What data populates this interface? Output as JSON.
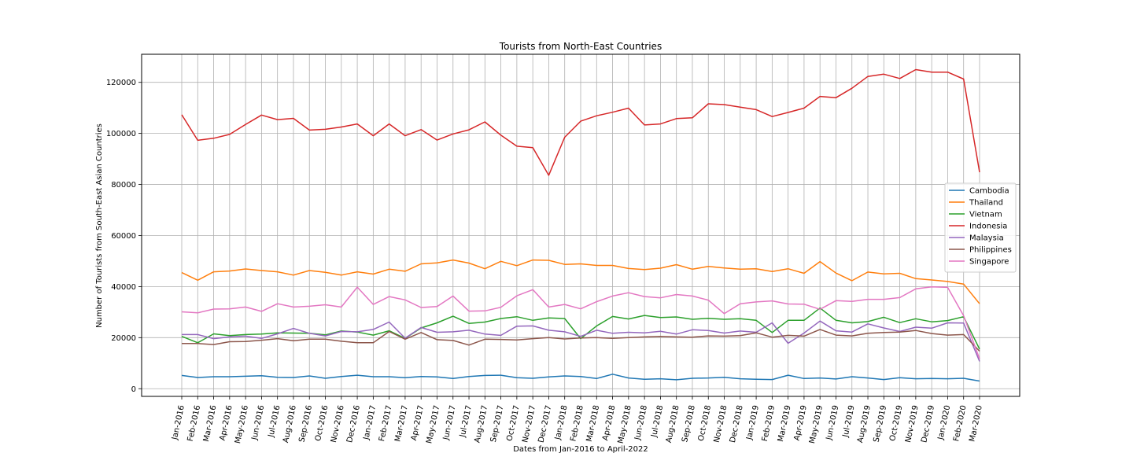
{
  "chart_data": {
    "type": "line",
    "title": "Tourists from North-East Countries",
    "xlabel": "Dates from Jan-2016 to April-2022",
    "ylabel": "Number of Tourists from South-East Asian Countries",
    "ylim": [
      -3000,
      131000
    ],
    "yticks": [
      0,
      20000,
      40000,
      60000,
      80000,
      100000,
      120000
    ],
    "grid": true,
    "legend_position": "right",
    "categories": [
      "Jan-2016",
      "Feb-2016",
      "Mar-2016",
      "Apr-2016",
      "May-2016",
      "Jun-2016",
      "Jul-2016",
      "Aug-2016",
      "Sep-2016",
      "Oct-2016",
      "Nov-2016",
      "Dec-2016",
      "Jan-2017",
      "Feb-2017",
      "Mar-2017",
      "Apr-2017",
      "May-2017",
      "Jun-2017",
      "Jul-2017",
      "Aug-2017",
      "Sep-2017",
      "Oct-2017",
      "Nov-2017",
      "Dec-2017",
      "Jan-2018",
      "Feb-2018",
      "Mar-2018",
      "Apr-2018",
      "May-2018",
      "Jun-2018",
      "Jul-2018",
      "Aug-2018",
      "Sep-2018",
      "Oct-2018",
      "Nov-2018",
      "Dec-2018",
      "Jan-2019",
      "Feb-2019",
      "Mar-2019",
      "Apr-2019",
      "May-2019",
      "Jun-2019",
      "Jul-2019",
      "Aug-2019",
      "Sep-2019",
      "Oct-2019",
      "Nov-2019",
      "Dec-2019",
      "Jan-2020",
      "Feb-2020",
      "Mar-2020"
    ],
    "series": [
      {
        "name": "Cambodia",
        "color": "#1f77b4",
        "values": [
          5200,
          4400,
          4700,
          4700,
          4900,
          5100,
          4500,
          4400,
          5000,
          4100,
          4800,
          5300,
          4700,
          4700,
          4300,
          4800,
          4600,
          4000,
          4800,
          5200,
          5300,
          4300,
          4100,
          4600,
          5000,
          4800,
          4000,
          5700,
          4200,
          3700,
          3900,
          3500,
          4100,
          4200,
          4500,
          3900,
          3700,
          3600,
          5300,
          4000,
          4200,
          3800,
          4700,
          4200,
          3600,
          4300,
          3900,
          4000,
          3900,
          4100,
          3000
        ]
      },
      {
        "name": "Thailand",
        "color": "#ff7f0e",
        "values": [
          45500,
          42500,
          45800,
          46100,
          46900,
          46300,
          45800,
          44500,
          46300,
          45600,
          44500,
          45800,
          44900,
          46800,
          46000,
          48900,
          49300,
          50400,
          49200,
          47000,
          49900,
          48200,
          50400,
          50300,
          48700,
          48900,
          48300,
          48300,
          47100,
          46700,
          47200,
          48600,
          46800,
          47900,
          47300,
          46800,
          47000,
          45900,
          47000,
          45200,
          49800,
          45300,
          42300,
          45700,
          45000,
          45200,
          43100,
          42600,
          42000,
          41000,
          33300
        ]
      },
      {
        "name": "Vietnam",
        "color": "#2ca02c",
        "values": [
          20500,
          18000,
          21500,
          20800,
          21200,
          21400,
          21900,
          21800,
          21700,
          21100,
          22600,
          22200,
          21000,
          22700,
          19700,
          23800,
          25800,
          28400,
          25600,
          26100,
          27500,
          28200,
          26800,
          27700,
          27500,
          19600,
          24600,
          28300,
          27300,
          28700,
          27900,
          28100,
          27200,
          27600,
          27200,
          27400,
          26800,
          22000,
          26800,
          26800,
          31600,
          26800,
          25800,
          26300,
          28000,
          25900,
          27400,
          26200,
          26700,
          28200,
          15500
        ]
      },
      {
        "name": "Indonesia",
        "color": "#d62728",
        "values": [
          107300,
          97300,
          98100,
          99600,
          103500,
          107200,
          105400,
          105900,
          101300,
          101600,
          102500,
          103700,
          99100,
          103700,
          99100,
          101500,
          97400,
          99800,
          101400,
          104500,
          99300,
          95000,
          94400,
          83600,
          98500,
          104800,
          106900,
          108300,
          109900,
          103300,
          103700,
          105800,
          106100,
          111600,
          111300,
          110300,
          109300,
          106600,
          108200,
          109900,
          114500,
          114000,
          117700,
          122300,
          123200,
          121500,
          125000,
          124000,
          124000,
          121300,
          84800
        ]
      },
      {
        "name": "Malaysia",
        "color": "#9467bd",
        "values": [
          21200,
          21200,
          19600,
          20300,
          20600,
          19700,
          21500,
          23600,
          21700,
          20700,
          22400,
          22300,
          23200,
          26100,
          19800,
          24000,
          22100,
          22300,
          22900,
          21400,
          20900,
          24500,
          24600,
          22900,
          22300,
          20500,
          22900,
          21700,
          22100,
          21900,
          22500,
          21400,
          23100,
          22800,
          21800,
          22600,
          22100,
          25800,
          17800,
          21800,
          26500,
          22700,
          22200,
          25400,
          23800,
          22400,
          24100,
          23700,
          25800,
          25700,
          10700
        ]
      },
      {
        "name": "Philippines",
        "color": "#8c564b",
        "values": [
          17700,
          17700,
          17300,
          18400,
          18500,
          19000,
          19600,
          18800,
          19400,
          19400,
          18600,
          18000,
          18000,
          22400,
          19400,
          22000,
          19200,
          18900,
          17100,
          19400,
          19300,
          19100,
          19600,
          20000,
          19500,
          19900,
          20000,
          19700,
          20000,
          20300,
          20500,
          20300,
          20200,
          20700,
          20600,
          20800,
          21900,
          20200,
          20900,
          20600,
          23200,
          21000,
          20700,
          21700,
          22000,
          22200,
          22800,
          21600,
          21000,
          21200,
          14700
        ]
      },
      {
        "name": "Singapore",
        "color": "#e377c2",
        "values": [
          30100,
          29700,
          31200,
          31300,
          32000,
          30300,
          33300,
          32000,
          32300,
          32900,
          32000,
          39800,
          33000,
          36100,
          34800,
          31800,
          32200,
          36300,
          30400,
          30500,
          31900,
          36400,
          38800,
          32000,
          33000,
          31300,
          34100,
          36300,
          37600,
          36100,
          35600,
          36900,
          36300,
          34700,
          29400,
          33300,
          34000,
          34400,
          33200,
          33100,
          31100,
          34500,
          34200,
          35000,
          35000,
          35700,
          39100,
          39900,
          39700,
          28600,
          11700
        ]
      }
    ]
  }
}
